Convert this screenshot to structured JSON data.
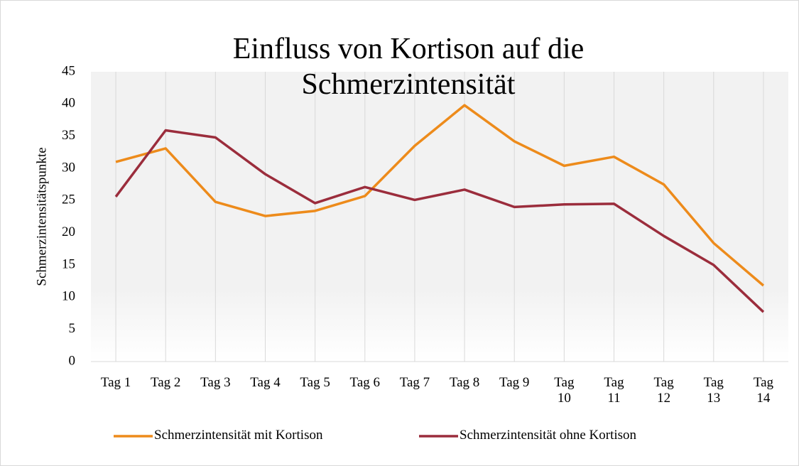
{
  "chart_data": {
    "type": "line",
    "title": "Einfluss von Kortison auf die Schmerzintensität",
    "y_label": "Schmerzintensitätspunkte",
    "categories": [
      "Tag 1",
      "Tag 2",
      "Tag 3",
      "Tag 4",
      "Tag 5",
      "Tag 6",
      "Tag 7",
      "Tag 8",
      "Tag 9",
      "Tag 10",
      "Tag 11",
      "Tag 12",
      "Tag 13",
      "Tag 14"
    ],
    "series": [
      {
        "name": "Schmerzintensität mit Kortison",
        "color": "#ed8b1b",
        "values": [
          31.0,
          33.1,
          24.8,
          22.6,
          23.4,
          25.7,
          33.5,
          39.8,
          34.2,
          30.4,
          31.8,
          27.5,
          18.4,
          11.8
        ]
      },
      {
        "name": "Schmerzintensität ohne Kortison",
        "color": "#9b2d3c",
        "values": [
          25.6,
          35.9,
          34.8,
          29.1,
          24.6,
          27.1,
          25.1,
          26.7,
          24.0,
          24.4,
          24.5,
          19.5,
          15.0,
          7.7
        ]
      }
    ],
    "ylim": [
      0,
      45
    ],
    "yticks": [
      0,
      5,
      10,
      15,
      20,
      25,
      30,
      35,
      40,
      45
    ],
    "grid": "x",
    "legend": "bottom"
  }
}
